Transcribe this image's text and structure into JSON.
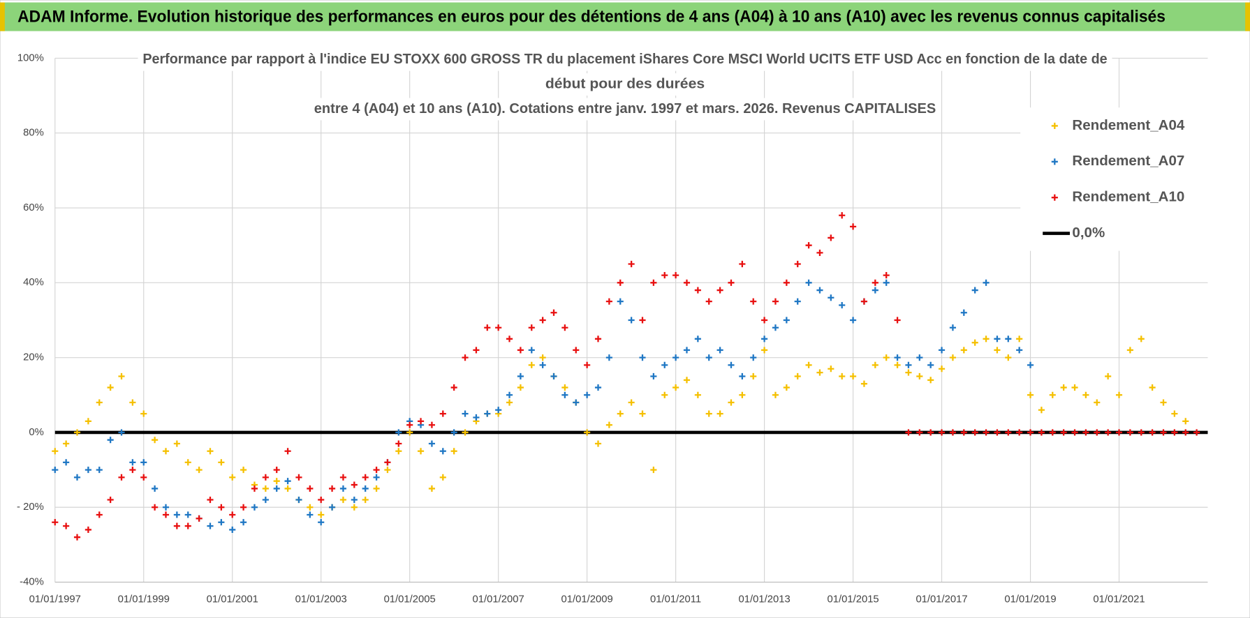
{
  "header": {
    "title": "ADAM Informe. Evolution historique des performances en euros pour des détentions de 4 ans (A04) à 10 ans (A10) avec les revenus connus capitalisés"
  },
  "chart_data": {
    "type": "scatter",
    "title": [
      "Performance par rapport à l'indice EU STOXX 600 GROSS TR  du placement iShares Core MSCI World UCITS ETF USD Acc en fonction de la date de",
      "début pour des durées",
      "entre 4 (A04) et 10 ans (A10). Cotations entre janv. 1997 et mars. 2026. Revenus CAPITALISES"
    ],
    "x": [
      "01/01/1997",
      "01/04/1997",
      "01/07/1997",
      "01/10/1997",
      "01/01/1998",
      "01/04/1998",
      "01/07/1998",
      "01/10/1998",
      "01/01/1999",
      "01/04/1999",
      "01/07/1999",
      "01/10/1999",
      "01/01/2000",
      "01/04/2000",
      "01/07/2000",
      "01/10/2000",
      "01/01/2001",
      "01/04/2001",
      "01/07/2001",
      "01/10/2001",
      "01/01/2002",
      "01/04/2002",
      "01/07/2002",
      "01/10/2002",
      "01/01/2003",
      "01/04/2003",
      "01/07/2003",
      "01/10/2003",
      "01/01/2004",
      "01/04/2004",
      "01/07/2004",
      "01/10/2004",
      "01/01/2005",
      "01/04/2005",
      "01/07/2005",
      "01/10/2005",
      "01/01/2006",
      "01/04/2006",
      "01/07/2006",
      "01/10/2006",
      "01/01/2007",
      "01/04/2007",
      "01/07/2007",
      "01/10/2007",
      "01/01/2008",
      "01/04/2008",
      "01/07/2008",
      "01/10/2008",
      "01/01/2009",
      "01/04/2009",
      "01/07/2009",
      "01/10/2009",
      "01/01/2010",
      "01/04/2010",
      "01/07/2010",
      "01/10/2010",
      "01/01/2011",
      "01/04/2011",
      "01/07/2011",
      "01/10/2011",
      "01/01/2012",
      "01/04/2012",
      "01/07/2012",
      "01/10/2012",
      "01/01/2013",
      "01/04/2013",
      "01/07/2013",
      "01/10/2013",
      "01/01/2014",
      "01/04/2014",
      "01/07/2014",
      "01/10/2014",
      "01/01/2015",
      "01/04/2015",
      "01/07/2015",
      "01/10/2015",
      "01/01/2016",
      "01/04/2016",
      "01/07/2016",
      "01/10/2016",
      "01/01/2017",
      "01/04/2017",
      "01/07/2017",
      "01/10/2017",
      "01/01/2018",
      "01/04/2018",
      "01/07/2018",
      "01/10/2018",
      "01/01/2019",
      "01/04/2019",
      "01/07/2019",
      "01/10/2019",
      "01/01/2020",
      "01/04/2020",
      "01/07/2020",
      "01/10/2020",
      "01/01/2021",
      "01/04/2021",
      "01/07/2021",
      "01/10/2021",
      "01/01/2022",
      "01/04/2022",
      "01/07/2022",
      "01/10/2022"
    ],
    "series": [
      {
        "name": "Rendement_A04",
        "color": "#f5c000",
        "values": [
          -5,
          -3,
          0,
          3,
          8,
          12,
          15,
          8,
          5,
          -2,
          -5,
          -3,
          -8,
          -10,
          -5,
          -8,
          -12,
          -10,
          -14,
          -15,
          -13,
          -15,
          -18,
          -20,
          -22,
          -20,
          -18,
          -20,
          -18,
          -15,
          -10,
          -5,
          0,
          -5,
          -15,
          -12,
          -5,
          0,
          3,
          5,
          5,
          8,
          12,
          18,
          20,
          15,
          12,
          8,
          0,
          -3,
          2,
          5,
          8,
          5,
          -10,
          10,
          12,
          14,
          10,
          5,
          5,
          8,
          10,
          15,
          22,
          10,
          12,
          15,
          18,
          16,
          17,
          15,
          15,
          13,
          18,
          20,
          18,
          16,
          15,
          14,
          17,
          20,
          22,
          24,
          25,
          22,
          20,
          25,
          10,
          6,
          10,
          12,
          12,
          10,
          8,
          15,
          10,
          22,
          25,
          12,
          8,
          5,
          3,
          null
        ]
      },
      {
        "name": "Rendement_A07",
        "color": "#1f77c4",
        "values": [
          -10,
          -8,
          -12,
          -10,
          -10,
          -2,
          0,
          -8,
          -8,
          -15,
          -20,
          -22,
          -22,
          -23,
          -25,
          -24,
          -26,
          -24,
          -20,
          -18,
          -15,
          -13,
          -18,
          -22,
          -24,
          -20,
          -15,
          -18,
          -15,
          -12,
          -8,
          0,
          3,
          2,
          -3,
          -5,
          0,
          5,
          4,
          5,
          6,
          10,
          15,
          22,
          18,
          15,
          10,
          8,
          10,
          12,
          20,
          35,
          30,
          20,
          15,
          18,
          20,
          22,
          25,
          20,
          22,
          18,
          15,
          20,
          25,
          28,
          30,
          35,
          40,
          38,
          36,
          34,
          30,
          35,
          38,
          40,
          20,
          18,
          20,
          18,
          22,
          28,
          32,
          38,
          40,
          25,
          25,
          22,
          18,
          null,
          null,
          null,
          null,
          null,
          null,
          null,
          null,
          null,
          null,
          null,
          null,
          null,
          null,
          null
        ]
      },
      {
        "name": "Rendement_A10",
        "color": "#e81010",
        "values": [
          -24,
          -25,
          -28,
          -26,
          -22,
          -18,
          -12,
          -10,
          -12,
          -20,
          -22,
          -25,
          -25,
          -23,
          -18,
          -20,
          -22,
          -20,
          -15,
          -12,
          -10,
          -5,
          -12,
          -15,
          -18,
          -15,
          -12,
          -14,
          -12,
          -10,
          -8,
          -3,
          2,
          3,
          2,
          5,
          12,
          20,
          22,
          28,
          28,
          25,
          22,
          28,
          30,
          32,
          28,
          22,
          18,
          25,
          35,
          40,
          45,
          30,
          40,
          42,
          42,
          40,
          38,
          35,
          38,
          40,
          45,
          35,
          30,
          35,
          40,
          45,
          50,
          48,
          52,
          58,
          55,
          35,
          40,
          42,
          30,
          0,
          0,
          0,
          0,
          0,
          0,
          0,
          0,
          0,
          0,
          0,
          0,
          0,
          0,
          0,
          0,
          0,
          0,
          0,
          0,
          0,
          0,
          0,
          0,
          0,
          0,
          0
        ]
      }
    ],
    "reference_line": {
      "name": "0,0%",
      "color": "#000000",
      "value": 0
    },
    "xlim": [
      "01/01/1997",
      "01/01/2023"
    ],
    "xticks": [
      "01/01/1997",
      "01/01/1999",
      "01/01/2001",
      "01/01/2003",
      "01/01/2005",
      "01/01/2007",
      "01/01/2009",
      "01/01/2011",
      "01/01/2013",
      "01/01/2015",
      "01/01/2017",
      "01/01/2019",
      "01/01/2021"
    ],
    "ylim": [
      -40,
      100
    ],
    "yticks": [
      {
        "value": -40,
        "label": "-40%"
      },
      {
        "value": -20,
        "label": "- 20%"
      },
      {
        "value": 0,
        "label": "0%"
      },
      {
        "value": 20,
        "label": "20%"
      },
      {
        "value": 40,
        "label": "40%"
      },
      {
        "value": 60,
        "label": "60%"
      },
      {
        "value": 80,
        "label": "80%"
      },
      {
        "value": 100,
        "label": "100%"
      }
    ],
    "grid": true,
    "legend": "right"
  }
}
